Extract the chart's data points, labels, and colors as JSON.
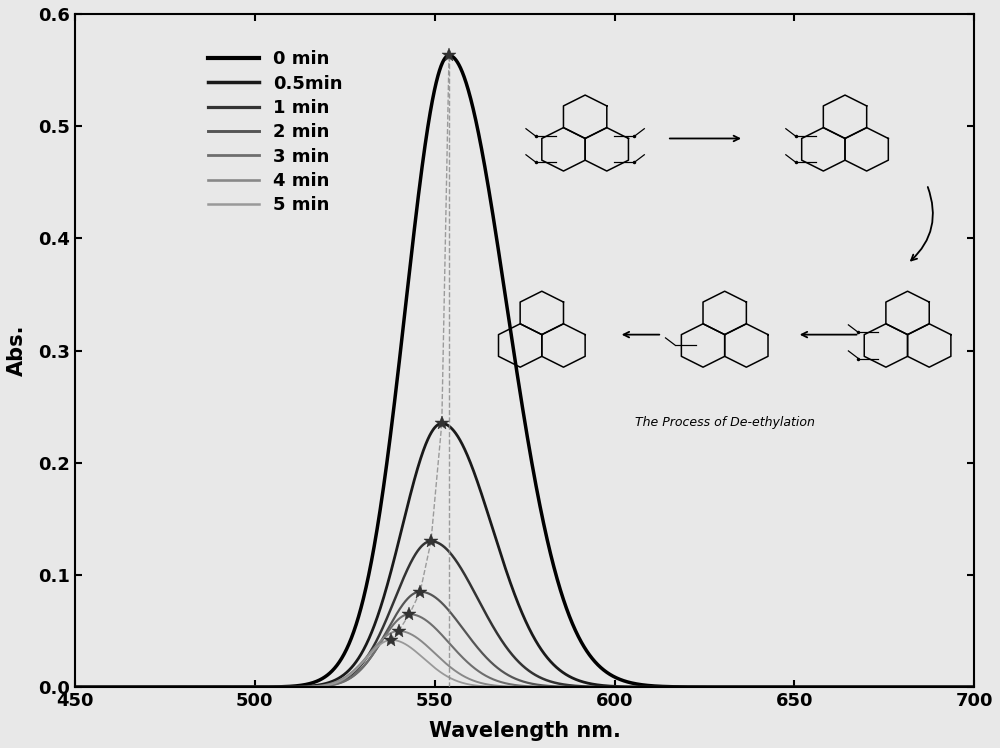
{
  "title": "",
  "xlabel": "Wavelength nm.",
  "ylabel": "Abs.",
  "xlim": [
    450,
    700
  ],
  "ylim": [
    0.0,
    0.6
  ],
  "xticks": [
    450,
    500,
    550,
    600,
    650,
    700
  ],
  "yticks": [
    0.0,
    0.1,
    0.2,
    0.3,
    0.4,
    0.5,
    0.6
  ],
  "legend_labels": [
    "0 min",
    "0.5min",
    "1 min",
    "2 min",
    "3 min",
    "4 min",
    "5 min"
  ],
  "line_colors": [
    "#000000",
    "#1a1a1a",
    "#333333",
    "#555555",
    "#6e6e6e",
    "#888888",
    "#999999"
  ],
  "line_widths": [
    2.5,
    2.0,
    1.8,
    1.6,
    1.5,
    1.4,
    1.3
  ],
  "peak_wavelengths": [
    554,
    552,
    549,
    546,
    543,
    540,
    538
  ],
  "peak_absorptions": [
    0.563,
    0.235,
    0.13,
    0.085,
    0.065,
    0.05,
    0.042
  ],
  "background_color": "#e8e8e8",
  "figsize": [
    10.0,
    7.48
  ],
  "dpi": 100,
  "widths_left": [
    12,
    11,
    10,
    9,
    8,
    8,
    7
  ],
  "widths_right": [
    16,
    14,
    13,
    12,
    11,
    10,
    9
  ]
}
